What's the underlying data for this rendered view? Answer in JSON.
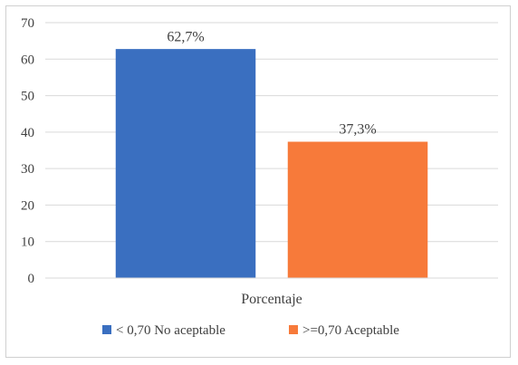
{
  "chart_data": {
    "type": "bar",
    "categories": [
      "Porcentaje"
    ],
    "series": [
      {
        "name": "< 0,70 No aceptable",
        "values": [
          62.7
        ],
        "label": "62,7%",
        "color": "#3a6fc0"
      },
      {
        "name": ">=0,70 Aceptable",
        "values": [
          37.3
        ],
        "label": "37,3%",
        "color": "#f77a3a"
      }
    ],
    "title": "",
    "xlabel": "",
    "ylabel": "",
    "ylim": [
      0,
      70
    ],
    "yticks": [
      "0",
      "10",
      "20",
      "30",
      "40",
      "50",
      "60",
      "70"
    ],
    "grid": true,
    "legend_position": "bottom"
  }
}
